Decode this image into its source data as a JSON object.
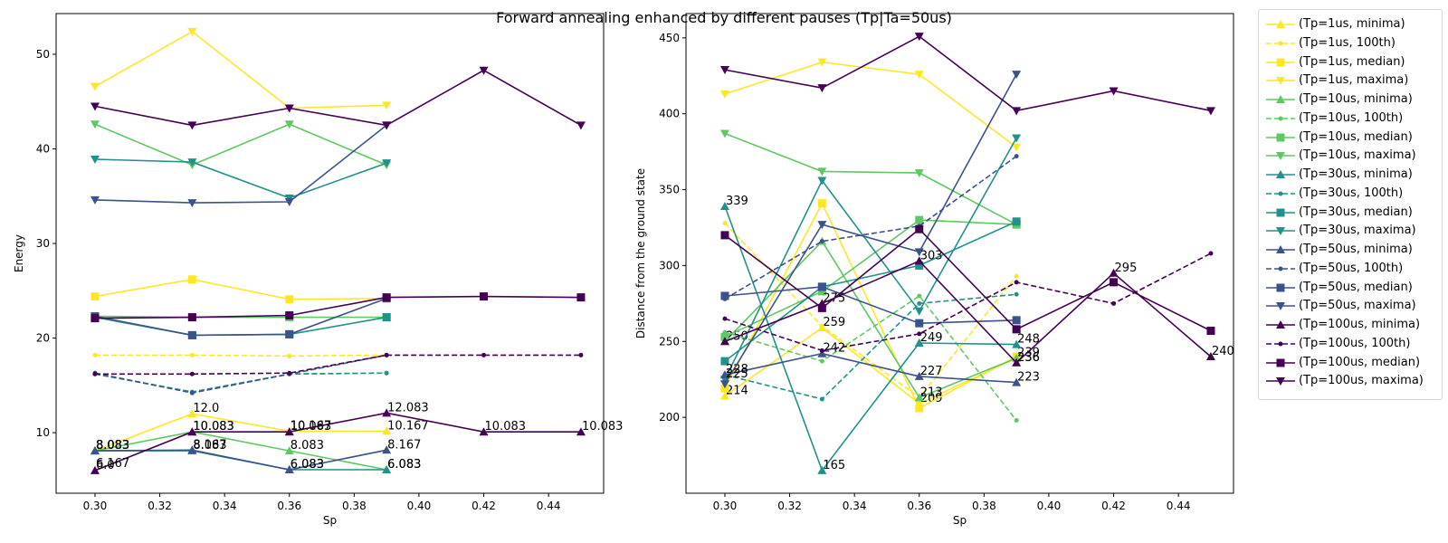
{
  "chart_data": {
    "type": "line",
    "title": "Forward annealing enhanced by different pauses (Tp|Ta=50us)",
    "colors": {
      "Tp=1us": "#fde725",
      "Tp=10us": "#5ec962",
      "Tp=30us": "#21918c",
      "Tp=50us": "#3b528b",
      "Tp=100us": "#440154"
    },
    "legend_position": "outside-right",
    "legend": [
      "(Tp=1us, minima)",
      "(Tp=1us, 100th)",
      "(Tp=1us, median)",
      "(Tp=1us, maxima)",
      "(Tp=10us, minima)",
      "(Tp=10us, 100th)",
      "(Tp=10us, median)",
      "(Tp=10us, maxima)",
      "(Tp=30us, minima)",
      "(Tp=30us, 100th)",
      "(Tp=30us, median)",
      "(Tp=30us, maxima)",
      "(Tp=50us, minima)",
      "(Tp=50us, 100th)",
      "(Tp=50us, median)",
      "(Tp=50us, maxima)",
      "(Tp=100us, minima)",
      "(Tp=100us, 100th)",
      "(Tp=100us, median)",
      "(Tp=100us, maxima)"
    ],
    "panels": [
      {
        "xlabel": "Sp",
        "ylabel": "Energy",
        "xlim": [
          0.288,
          0.457
        ],
        "ylim": [
          3.6,
          54.3
        ],
        "xticks": [
          0.3,
          0.32,
          0.34,
          0.36,
          0.38,
          0.4,
          0.42,
          0.44
        ],
        "yticks": [
          10,
          20,
          30,
          40,
          50
        ],
        "grid": false,
        "series": [
          {
            "name": "(Tp=1us, minima)",
            "group": "Tp=1us",
            "stat": "minima",
            "x": [
              0.3,
              0.33,
              0.36,
              0.39
            ],
            "y": [
              8.083,
              12.0,
              10.167,
              10.167
            ],
            "labels": [
              "8.083",
              "12.0",
              "10.167",
              "10.167"
            ]
          },
          {
            "name": "(Tp=1us, 100th)",
            "group": "Tp=1us",
            "stat": "100th",
            "x": [
              0.3,
              0.33,
              0.36,
              0.39
            ],
            "y": [
              18.2,
              18.2,
              18.1,
              18.2
            ]
          },
          {
            "name": "(Tp=1us, median)",
            "group": "Tp=1us",
            "stat": "median",
            "x": [
              0.3,
              0.33,
              0.36,
              0.39
            ],
            "y": [
              24.4,
              26.2,
              24.1,
              24.2
            ]
          },
          {
            "name": "(Tp=1us, maxima)",
            "group": "Tp=1us",
            "stat": "maxima",
            "x": [
              0.3,
              0.33,
              0.36,
              0.39
            ],
            "y": [
              46.6,
              52.4,
              44.3,
              44.6
            ]
          },
          {
            "name": "(Tp=10us, minima)",
            "group": "Tp=10us",
            "stat": "minima",
            "x": [
              0.3,
              0.33,
              0.36,
              0.39
            ],
            "y": [
              8.083,
              10.083,
              8.083,
              6.083
            ],
            "labels": [
              "8.083",
              "10.083",
              "8.083",
              "6.083"
            ]
          },
          {
            "name": "(Tp=10us, 100th)",
            "group": "Tp=10us",
            "stat": "100th",
            "x": [
              0.3,
              0.33,
              0.36,
              0.39
            ],
            "y": [
              16.2,
              14.3,
              16.2,
              16.3
            ]
          },
          {
            "name": "(Tp=10us, median)",
            "group": "Tp=10us",
            "stat": "median",
            "x": [
              0.3,
              0.33,
              0.36,
              0.39
            ],
            "y": [
              22.3,
              22.2,
              22.2,
              22.2
            ]
          },
          {
            "name": "(Tp=10us, maxima)",
            "group": "Tp=10us",
            "stat": "maxima",
            "x": [
              0.3,
              0.33,
              0.36,
              0.39
            ],
            "y": [
              42.6,
              38.3,
              42.6,
              38.3
            ]
          },
          {
            "name": "(Tp=30us, minima)",
            "group": "Tp=30us",
            "stat": "minima",
            "x": [
              0.3,
              0.33,
              0.36,
              0.39
            ],
            "y": [
              8.083,
              8.083,
              6.083,
              6.083
            ],
            "labels": [
              "8.083",
              "8.083",
              "6.083",
              "6.083"
            ]
          },
          {
            "name": "(Tp=30us, 100th)",
            "group": "Tp=30us",
            "stat": "100th",
            "x": [
              0.3,
              0.33,
              0.36,
              0.39
            ],
            "y": [
              16.2,
              14.3,
              16.2,
              16.3
            ]
          },
          {
            "name": "(Tp=30us, median)",
            "group": "Tp=30us",
            "stat": "median",
            "x": [
              0.3,
              0.33,
              0.36,
              0.39
            ],
            "y": [
              22.2,
              20.3,
              20.4,
              22.2
            ]
          },
          {
            "name": "(Tp=30us, maxima)",
            "group": "Tp=30us",
            "stat": "maxima",
            "x": [
              0.3,
              0.33,
              0.36,
              0.39
            ],
            "y": [
              38.9,
              38.6,
              34.8,
              38.5
            ]
          },
          {
            "name": "(Tp=50us, minima)",
            "group": "Tp=50us",
            "stat": "minima",
            "x": [
              0.3,
              0.33,
              0.36,
              0.39
            ],
            "y": [
              8.083,
              8.167,
              6.083,
              8.167
            ],
            "labels": [
              "8.083",
              "8.167",
              "6.083",
              "8.167"
            ]
          },
          {
            "name": "(Tp=50us, 100th)",
            "group": "Tp=50us",
            "stat": "100th",
            "x": [
              0.3,
              0.33,
              0.36,
              0.39
            ],
            "y": [
              16.3,
              14.2,
              16.2,
              18.2
            ]
          },
          {
            "name": "(Tp=50us, median)",
            "group": "Tp=50us",
            "stat": "median",
            "x": [
              0.3,
              0.33,
              0.36,
              0.39
            ],
            "y": [
              22.3,
              20.3,
              20.4,
              24.2
            ]
          },
          {
            "name": "(Tp=50us, maxima)",
            "group": "Tp=50us",
            "stat": "maxima",
            "x": [
              0.3,
              0.33,
              0.36,
              0.39
            ],
            "y": [
              34.6,
              34.3,
              34.4,
              42.5
            ]
          },
          {
            "name": "(Tp=100us, minima)",
            "group": "Tp=100us",
            "stat": "minima",
            "x": [
              0.3,
              0.33,
              0.36,
              0.39,
              0.42,
              0.45
            ],
            "y": [
              6.0,
              10.083,
              10.083,
              12.083,
              10.083,
              10.083
            ],
            "labels": [
              "6.0",
              "10.083",
              "10.083",
              "12.083",
              "10.083",
              "10.083"
            ]
          },
          {
            "name": "(Tp=100us, 100th)",
            "group": "Tp=100us",
            "stat": "100th",
            "x": [
              0.3,
              0.33,
              0.36,
              0.39,
              0.42,
              0.45
            ],
            "y": [
              16.2,
              16.2,
              16.3,
              18.2,
              18.2,
              18.2
            ]
          },
          {
            "name": "(Tp=100us, median)",
            "group": "Tp=100us",
            "stat": "median",
            "x": [
              0.3,
              0.33,
              0.36,
              0.39,
              0.42,
              0.45
            ],
            "y": [
              22.1,
              22.2,
              22.4,
              24.3,
              24.4,
              24.3
            ]
          },
          {
            "name": "(Tp=100us, maxima)",
            "group": "Tp=100us",
            "stat": "maxima",
            "x": [
              0.3,
              0.33,
              0.36,
              0.39,
              0.42,
              0.45
            ],
            "y": [
              44.5,
              42.5,
              44.3,
              42.5,
              48.3,
              42.5
            ]
          }
        ],
        "extra_labels": [
          {
            "x": 0.3,
            "y": 6.167,
            "text": "6.167"
          }
        ]
      },
      {
        "xlabel": "Sp",
        "ylabel": "Distance from the ground state",
        "xlim": [
          0.288,
          0.457
        ],
        "ylim": [
          150,
          466
        ],
        "xticks": [
          0.3,
          0.32,
          0.34,
          0.36,
          0.38,
          0.4,
          0.42,
          0.44
        ],
        "yticks": [
          200,
          250,
          300,
          350,
          400,
          450
        ],
        "grid": false,
        "series": [
          {
            "name": "(Tp=1us, minima)",
            "group": "Tp=1us",
            "stat": "minima",
            "x": [
              0.3,
              0.33,
              0.36,
              0.39
            ],
            "y": [
              214,
              259,
              209,
              239
            ],
            "labels": [
              "214",
              "259",
              "209",
              ""
            ]
          },
          {
            "name": "(Tp=1us, 100th)",
            "group": "Tp=1us",
            "stat": "100th",
            "x": [
              0.3,
              0.33,
              0.36,
              0.39
            ],
            "y": [
              328,
              260,
              213,
              293
            ]
          },
          {
            "name": "(Tp=1us, median)",
            "group": "Tp=1us",
            "stat": "median",
            "x": [
              0.3,
              0.33,
              0.36,
              0.39
            ],
            "y": [
              219,
              341,
              206,
              240
            ]
          },
          {
            "name": "(Tp=1us, maxima)",
            "group": "Tp=1us",
            "stat": "maxima",
            "x": [
              0.3,
              0.33,
              0.36,
              0.39
            ],
            "y": [
              413,
              434,
              426,
              378
            ]
          },
          {
            "name": "(Tp=10us, minima)",
            "group": "Tp=10us",
            "stat": "minima",
            "x": [
              0.3,
              0.33,
              0.36,
              0.39
            ],
            "y": [
              250,
              316,
              213,
              239
            ],
            "labels": [
              "250",
              "",
              "213",
              "239"
            ]
          },
          {
            "name": "(Tp=10us, 100th)",
            "group": "Tp=10us",
            "stat": "100th",
            "x": [
              0.3,
              0.33,
              0.36,
              0.39
            ],
            "y": [
              256,
              237,
              280,
              198
            ]
          },
          {
            "name": "(Tp=10us, median)",
            "group": "Tp=10us",
            "stat": "median",
            "x": [
              0.3,
              0.33,
              0.36,
              0.39
            ],
            "y": [
              253,
              283,
              330,
              327
            ]
          },
          {
            "name": "(Tp=10us, maxima)",
            "group": "Tp=10us",
            "stat": "maxima",
            "x": [
              0.3,
              0.33,
              0.36,
              0.39
            ],
            "y": [
              387,
              362,
              361,
              327
            ]
          },
          {
            "name": "(Tp=30us, minima)",
            "group": "Tp=30us",
            "stat": "minima",
            "x": [
              0.3,
              0.33,
              0.36,
              0.39
            ],
            "y": [
              339,
              165,
              249,
              248
            ],
            "labels": [
              "339",
              "165",
              "249",
              "248"
            ]
          },
          {
            "name": "(Tp=30us, 100th)",
            "group": "Tp=30us",
            "stat": "100th",
            "x": [
              0.3,
              0.33,
              0.36,
              0.39
            ],
            "y": [
              228,
              212,
              275,
              281
            ]
          },
          {
            "name": "(Tp=30us, median)",
            "group": "Tp=30us",
            "stat": "median",
            "x": [
              0.3,
              0.33,
              0.36,
              0.39
            ],
            "y": [
              237,
              286,
              300,
              329
            ]
          },
          {
            "name": "(Tp=30us, maxima)",
            "group": "Tp=30us",
            "stat": "maxima",
            "x": [
              0.3,
              0.33,
              0.36,
              0.39
            ],
            "y": [
              225,
              356,
              270,
              384
            ]
          },
          {
            "name": "(Tp=50us, minima)",
            "group": "Tp=50us",
            "stat": "minima",
            "x": [
              0.3,
              0.33,
              0.36,
              0.39
            ],
            "y": [
              228,
              242,
              227,
              223
            ],
            "labels": [
              "228",
              "242",
              "227",
              "223"
            ]
          },
          {
            "name": "(Tp=50us, 100th)",
            "group": "Tp=50us",
            "stat": "100th",
            "x": [
              0.3,
              0.33,
              0.36,
              0.39
            ],
            "y": [
              278,
              316,
              326,
              372
            ]
          },
          {
            "name": "(Tp=50us, median)",
            "group": "Tp=50us",
            "stat": "median",
            "x": [
              0.3,
              0.33,
              0.36,
              0.39
            ],
            "y": [
              280,
              286,
              262,
              264
            ]
          },
          {
            "name": "(Tp=50us, maxima)",
            "group": "Tp=50us",
            "stat": "maxima",
            "x": [
              0.3,
              0.33,
              0.36,
              0.39
            ],
            "y": [
              222,
              327,
              309,
              426
            ]
          },
          {
            "name": "(Tp=100us, minima)",
            "group": "Tp=100us",
            "stat": "minima",
            "x": [
              0.3,
              0.33,
              0.36,
              0.39,
              0.42,
              0.45
            ],
            "y": [
              250,
              275,
              303,
              236,
              295,
              240
            ],
            "labels": [
              "",
              "275",
              "303",
              "236",
              "295",
              "240"
            ]
          },
          {
            "name": "(Tp=100us, 100th)",
            "group": "Tp=100us",
            "stat": "100th",
            "x": [
              0.3,
              0.33,
              0.36,
              0.39,
              0.42,
              0.45
            ],
            "y": [
              265,
              244,
              255,
              289,
              275,
              308
            ]
          },
          {
            "name": "(Tp=100us, median)",
            "group": "Tp=100us",
            "stat": "median",
            "x": [
              0.3,
              0.33,
              0.36,
              0.39,
              0.42,
              0.45
            ],
            "y": [
              320,
              272,
              324,
              258,
              289,
              257
            ]
          },
          {
            "name": "(Tp=100us, maxima)",
            "group": "Tp=100us",
            "stat": "maxima",
            "x": [
              0.3,
              0.33,
              0.36,
              0.39,
              0.42,
              0.45
            ],
            "y": [
              429,
              417,
              451,
              402,
              415,
              402
            ]
          }
        ],
        "extra_labels": [
          {
            "x": 0.3,
            "y": 225,
            "text": "225"
          },
          {
            "x": 0.39,
            "y": 236,
            "text": "236"
          }
        ]
      }
    ]
  }
}
